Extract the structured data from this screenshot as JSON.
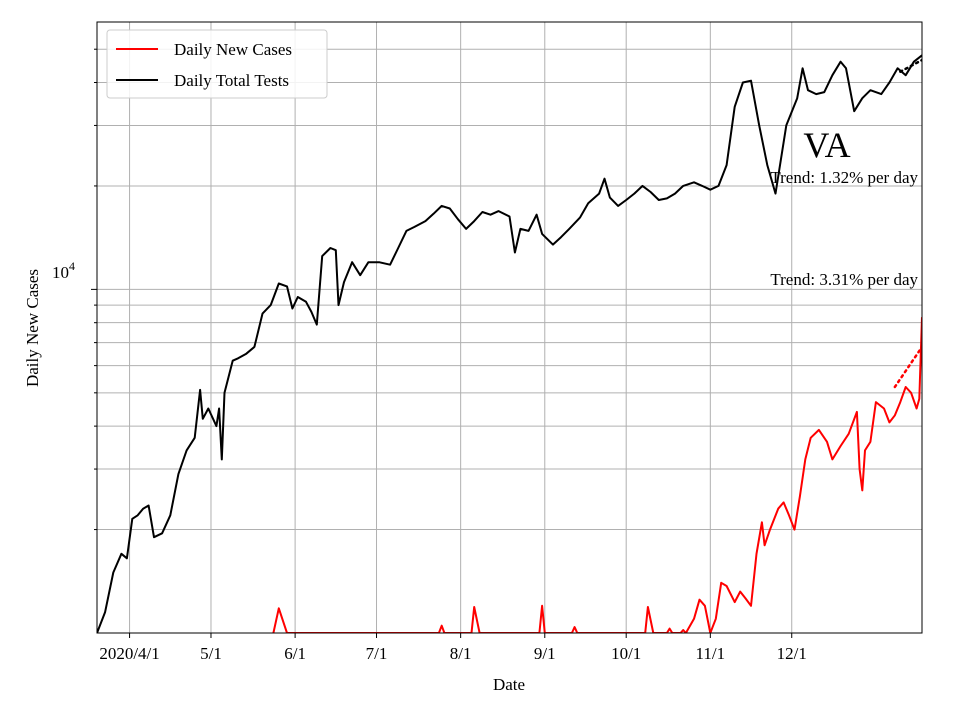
{
  "chart_data": {
    "type": "line",
    "title": "VA",
    "xlabel": "Date",
    "ylabel": "Daily New Cases",
    "x_tick_labels": [
      "2020/4/1",
      "5/1",
      "6/1",
      "7/1",
      "8/1",
      "9/1",
      "10/1",
      "11/1",
      "12/1"
    ],
    "x_tick_dates": [
      "2020-04-01",
      "2020-05-01",
      "2020-06-01",
      "2020-07-01",
      "2020-08-01",
      "2020-09-01",
      "2020-10-01",
      "2020-11-01",
      "2020-12-01"
    ],
    "xlim": [
      "2020-03-20",
      "2021-01-18"
    ],
    "y_scale": "log",
    "ylim": [
      1000,
      60000
    ],
    "y_major_tick": {
      "base": "10",
      "exponent": "4",
      "value": 10000
    },
    "y_minor_ticks": [
      2000,
      3000,
      4000,
      5000,
      6000,
      7000,
      8000,
      9000,
      20000,
      30000,
      40000,
      50000
    ],
    "grid": true,
    "legend": {
      "placement": "top-left",
      "entries": [
        {
          "label": "Daily New Cases",
          "color": "#ff0000"
        },
        {
          "label": "Daily Total Tests",
          "color": "#000000"
        }
      ]
    },
    "annotations": [
      {
        "text": "Trend: 1.32% per day"
      },
      {
        "text": "Trend: 3.31% per day"
      }
    ],
    "series": [
      {
        "name": "Daily Total Tests",
        "color": "#000000",
        "points": [
          [
            "2020-03-20",
            1000
          ],
          [
            "2020-03-23",
            1150
          ],
          [
            "2020-03-26",
            1500
          ],
          [
            "2020-03-29",
            1700
          ],
          [
            "2020-03-31",
            1650
          ],
          [
            "2020-04-02",
            2150
          ],
          [
            "2020-04-04",
            2200
          ],
          [
            "2020-04-06",
            2300
          ],
          [
            "2020-04-08",
            2350
          ],
          [
            "2020-04-10",
            1900
          ],
          [
            "2020-04-13",
            1950
          ],
          [
            "2020-04-16",
            2200
          ],
          [
            "2020-04-19",
            2900
          ],
          [
            "2020-04-22",
            3400
          ],
          [
            "2020-04-25",
            3700
          ],
          [
            "2020-04-27",
            5100
          ],
          [
            "2020-04-28",
            4200
          ],
          [
            "2020-04-30",
            4500
          ],
          [
            "2020-05-03",
            4000
          ],
          [
            "2020-05-04",
            4500
          ],
          [
            "2020-05-05",
            3200
          ],
          [
            "2020-05-06",
            5000
          ],
          [
            "2020-05-09",
            6200
          ],
          [
            "2020-05-11",
            6300
          ],
          [
            "2020-05-14",
            6500
          ],
          [
            "2020-05-17",
            6800
          ],
          [
            "2020-05-20",
            8500
          ],
          [
            "2020-05-23",
            9000
          ],
          [
            "2020-05-26",
            10400
          ],
          [
            "2020-05-29",
            10200
          ],
          [
            "2020-05-31",
            8800
          ],
          [
            "2020-06-02",
            9500
          ],
          [
            "2020-06-05",
            9200
          ],
          [
            "2020-06-07",
            8600
          ],
          [
            "2020-06-09",
            7900
          ],
          [
            "2020-06-11",
            12500
          ],
          [
            "2020-06-14",
            13200
          ],
          [
            "2020-06-16",
            13000
          ],
          [
            "2020-06-17",
            9000
          ],
          [
            "2020-06-19",
            10500
          ],
          [
            "2020-06-22",
            12000
          ],
          [
            "2020-06-25",
            11000
          ],
          [
            "2020-06-28",
            12000
          ],
          [
            "2020-07-02",
            12000
          ],
          [
            "2020-07-06",
            11800
          ],
          [
            "2020-07-09",
            13200
          ],
          [
            "2020-07-12",
            14800
          ],
          [
            "2020-07-15",
            15200
          ],
          [
            "2020-07-19",
            15800
          ],
          [
            "2020-07-22",
            16600
          ],
          [
            "2020-07-25",
            17500
          ],
          [
            "2020-07-28",
            17200
          ],
          [
            "2020-07-31",
            16000
          ],
          [
            "2020-08-03",
            15000
          ],
          [
            "2020-08-06",
            15800
          ],
          [
            "2020-08-09",
            16800
          ],
          [
            "2020-08-12",
            16500
          ],
          [
            "2020-08-15",
            16900
          ],
          [
            "2020-08-19",
            16300
          ],
          [
            "2020-08-21",
            12800
          ],
          [
            "2020-08-23",
            15000
          ],
          [
            "2020-08-26",
            14800
          ],
          [
            "2020-08-29",
            16500
          ],
          [
            "2020-08-31",
            14500
          ],
          [
            "2020-09-04",
            13500
          ],
          [
            "2020-09-07",
            14200
          ],
          [
            "2020-09-10",
            15000
          ],
          [
            "2020-09-14",
            16200
          ],
          [
            "2020-09-17",
            17800
          ],
          [
            "2020-09-21",
            19000
          ],
          [
            "2020-09-23",
            21000
          ],
          [
            "2020-09-25",
            18500
          ],
          [
            "2020-09-28",
            17500
          ],
          [
            "2020-10-01",
            18200
          ],
          [
            "2020-10-04",
            19000
          ],
          [
            "2020-10-07",
            20000
          ],
          [
            "2020-10-10",
            19200
          ],
          [
            "2020-10-13",
            18200
          ],
          [
            "2020-10-16",
            18400
          ],
          [
            "2020-10-19",
            19000
          ],
          [
            "2020-10-22",
            20000
          ],
          [
            "2020-10-26",
            20500
          ],
          [
            "2020-10-29",
            20000
          ],
          [
            "2020-11-01",
            19500
          ],
          [
            "2020-11-04",
            20000
          ],
          [
            "2020-11-07",
            23000
          ],
          [
            "2020-11-10",
            34000
          ],
          [
            "2020-11-13",
            40000
          ],
          [
            "2020-11-16",
            40500
          ],
          [
            "2020-11-19",
            30000
          ],
          [
            "2020-11-22",
            23000
          ],
          [
            "2020-11-25",
            19000
          ],
          [
            "2020-11-29",
            30000
          ],
          [
            "2020-12-03",
            36000
          ],
          [
            "2020-12-05",
            44000
          ],
          [
            "2020-12-07",
            38000
          ],
          [
            "2020-12-10",
            37000
          ],
          [
            "2020-12-13",
            37500
          ],
          [
            "2020-12-16",
            42000
          ],
          [
            "2020-12-19",
            46000
          ],
          [
            "2020-12-21",
            44000
          ],
          [
            "2020-12-24",
            33000
          ],
          [
            "2020-12-27",
            36000
          ],
          [
            "2020-12-30",
            38000
          ],
          [
            "2021-01-03",
            37000
          ],
          [
            "2021-01-06",
            40000
          ],
          [
            "2021-01-09",
            44000
          ],
          [
            "2021-01-12",
            42000
          ],
          [
            "2021-01-15",
            46000
          ],
          [
            "2021-01-18",
            48000
          ]
        ]
      },
      {
        "name": "Daily New Cases",
        "color": "#ff0000",
        "points": [
          [
            "2020-05-24",
            1000
          ],
          [
            "2020-05-26",
            1180
          ],
          [
            "2020-05-29",
            1000
          ],
          [
            "2020-07-24",
            1000
          ],
          [
            "2020-07-25",
            1050
          ],
          [
            "2020-07-26",
            1000
          ],
          [
            "2020-08-05",
            1000
          ],
          [
            "2020-08-06",
            1190
          ],
          [
            "2020-08-08",
            1000
          ],
          [
            "2020-08-30",
            1000
          ],
          [
            "2020-08-31",
            1200
          ],
          [
            "2020-09-01",
            1000
          ],
          [
            "2020-09-11",
            1000
          ],
          [
            "2020-09-12",
            1040
          ],
          [
            "2020-09-13",
            1000
          ],
          [
            "2020-10-08",
            1000
          ],
          [
            "2020-10-09",
            1190
          ],
          [
            "2020-10-11",
            1000
          ],
          [
            "2020-10-16",
            1000
          ],
          [
            "2020-10-17",
            1030
          ],
          [
            "2020-10-18",
            1000
          ],
          [
            "2020-10-21",
            1000
          ],
          [
            "2020-10-22",
            1020
          ],
          [
            "2020-10-23",
            1000
          ],
          [
            "2020-10-26",
            1100
          ],
          [
            "2020-10-28",
            1250
          ],
          [
            "2020-10-30",
            1200
          ],
          [
            "2020-11-01",
            1000
          ],
          [
            "2020-11-03",
            1100
          ],
          [
            "2020-11-05",
            1400
          ],
          [
            "2020-11-07",
            1370
          ],
          [
            "2020-11-10",
            1230
          ],
          [
            "2020-11-12",
            1320
          ],
          [
            "2020-11-14",
            1260
          ],
          [
            "2020-11-16",
            1200
          ],
          [
            "2020-11-18",
            1700
          ],
          [
            "2020-11-20",
            2100
          ],
          [
            "2020-11-21",
            1800
          ],
          [
            "2020-11-23",
            2000
          ],
          [
            "2020-11-26",
            2300
          ],
          [
            "2020-11-28",
            2400
          ],
          [
            "2020-11-30",
            2200
          ],
          [
            "2020-12-02",
            2000
          ],
          [
            "2020-12-04",
            2500
          ],
          [
            "2020-12-06",
            3200
          ],
          [
            "2020-12-08",
            3700
          ],
          [
            "2020-12-11",
            3900
          ],
          [
            "2020-12-14",
            3600
          ],
          [
            "2020-12-16",
            3200
          ],
          [
            "2020-12-19",
            3500
          ],
          [
            "2020-12-22",
            3800
          ],
          [
            "2020-12-25",
            4400
          ],
          [
            "2020-12-26",
            3000
          ],
          [
            "2020-12-27",
            2600
          ],
          [
            "2020-12-28",
            3400
          ],
          [
            "2020-12-30",
            3600
          ],
          [
            "2021-01-01",
            4700
          ],
          [
            "2021-01-04",
            4500
          ],
          [
            "2021-01-06",
            4100
          ],
          [
            "2021-01-08",
            4300
          ],
          [
            "2021-01-10",
            4700
          ],
          [
            "2021-01-12",
            5200
          ],
          [
            "2021-01-14",
            5000
          ],
          [
            "2021-01-16",
            4500
          ],
          [
            "2021-01-17",
            4800
          ],
          [
            "2021-01-18",
            8300
          ]
        ]
      }
    ],
    "trend_lines": [
      {
        "color": "#000000",
        "style": "dotted",
        "points": [
          [
            "2021-01-10",
            43000
          ],
          [
            "2021-01-18",
            46500
          ]
        ]
      },
      {
        "color": "#ff0000",
        "style": "dotted",
        "points": [
          [
            "2021-01-08",
            5200
          ],
          [
            "2021-01-18",
            6800
          ]
        ]
      }
    ]
  }
}
